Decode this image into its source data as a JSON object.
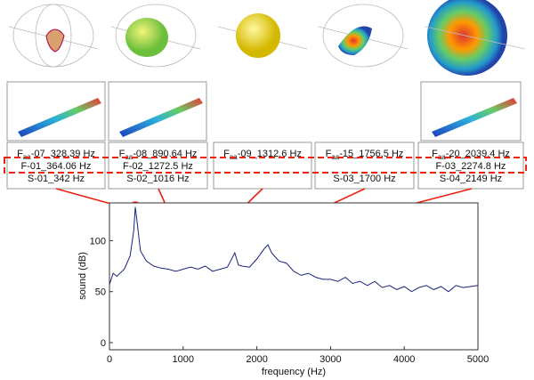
{
  "chart_data": {
    "type": "line",
    "xlabel": "frequency (Hz)",
    "ylabel": "sound (dB)",
    "x": [
      0,
      50,
      100,
      200,
      280,
      330,
      350,
      380,
      420,
      500,
      600,
      700,
      800,
      900,
      1000,
      1100,
      1200,
      1300,
      1400,
      1500,
      1600,
      1700,
      1750,
      1800,
      1900,
      2000,
      2100,
      2150,
      2200,
      2300,
      2400,
      2500,
      2600,
      2700,
      2800,
      2900,
      3000,
      3100,
      3200,
      3300,
      3400,
      3500,
      3600,
      3700,
      3800,
      3900,
      4000,
      4100,
      4200,
      4300,
      4400,
      4500,
      4600,
      4700,
      4800,
      4900,
      5000
    ],
    "series": [
      {
        "color": "#1a237e",
        "values": [
          57,
          68,
          65,
          72,
          85,
          110,
          133,
          115,
          90,
          80,
          75,
          73,
          72,
          70,
          72,
          74,
          72,
          75,
          70,
          72,
          74,
          88,
          76,
          75,
          74,
          82,
          92,
          96,
          88,
          80,
          78,
          70,
          66,
          68,
          64,
          62,
          62,
          60,
          64,
          58,
          60,
          56,
          60,
          54,
          56,
          52,
          55,
          50,
          54,
          56,
          52,
          55,
          50,
          56,
          54,
          55,
          56
        ]
      }
    ],
    "xlim": [
      0,
      5000
    ],
    "ylim": [
      -7,
      137
    ],
    "xticks": [
      0,
      1000,
      2000,
      3000,
      4000,
      5000
    ],
    "yticks": [
      0,
      50,
      100
    ]
  },
  "mode_boxes": [
    {
      "faa": {
        "base": "F",
        "sub": "aa",
        "rest": "-07_328.39 Hz"
      },
      "f": "F-01_364.06 Hz",
      "s": "S-01_342 Hz"
    },
    {
      "faa": {
        "base": "F",
        "sub": "aa",
        "rest": "-08_890.64 Hz"
      },
      "f": "F-02_1272.5 Hz",
      "s": "S-02_1016 Hz"
    },
    {
      "faa": {
        "base": "F",
        "sub": "aa",
        "rest": "-09_1312.6 Hz"
      }
    },
    {
      "faa": {
        "base": "F",
        "sub": "aa",
        "rest": "-15_1756.5 Hz"
      },
      "s": "S-03_1700 Hz"
    },
    {
      "faa": {
        "base": "F",
        "sub": "aa",
        "rest": "-20_2039.4 Hz"
      },
      "f": "F-03_2274.8 Hz",
      "s": "S-04_2149 Hz"
    }
  ]
}
